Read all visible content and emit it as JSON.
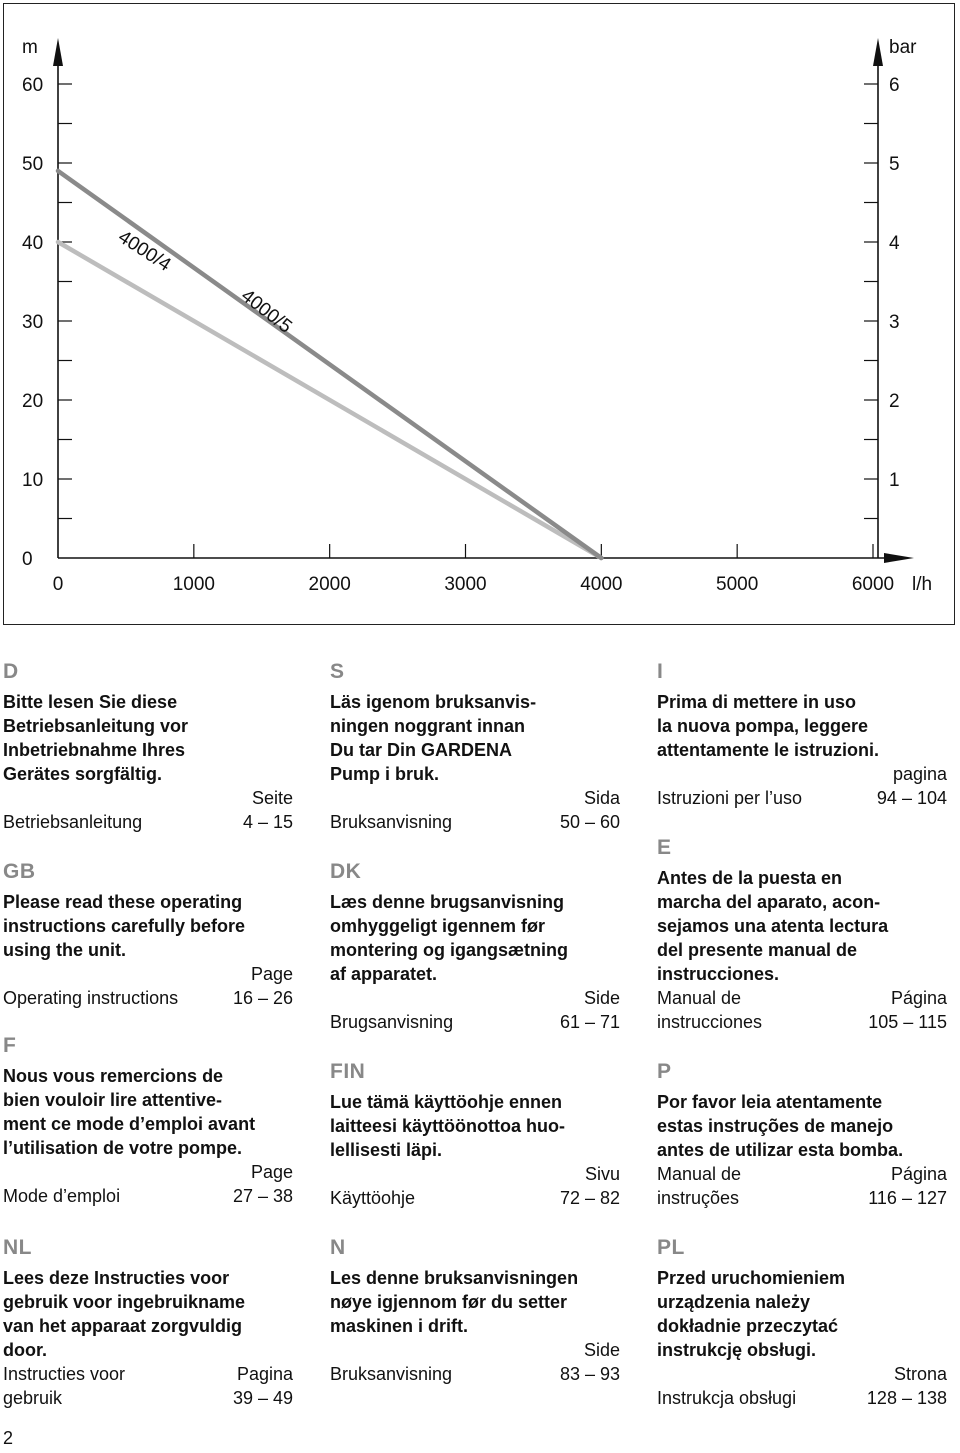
{
  "chart_data": {
    "type": "line",
    "y_left_unit": "m",
    "y_right_unit": "bar",
    "x_unit": "l/h",
    "y_left_ticks": [
      "60",
      "50",
      "40",
      "30",
      "20",
      "10",
      "0"
    ],
    "y_right_ticks": [
      "6",
      "5",
      "4",
      "3",
      "2",
      "1"
    ],
    "x_ticks": [
      "0",
      "1000",
      "2000",
      "3000",
      "4000",
      "5000",
      "6000"
    ],
    "xlim": [
      0,
      6500
    ],
    "ylim": [
      0,
      60
    ],
    "series": [
      {
        "name": "4000/4",
        "color": "#bdbdbd",
        "x": [
          0,
          4000
        ],
        "y": [
          40,
          0
        ]
      },
      {
        "name": "4000/5",
        "color": "#8a8a8a",
        "x": [
          0,
          4000
        ],
        "y": [
          49,
          0
        ]
      }
    ]
  },
  "sections": {
    "D": {
      "code": "D",
      "intro": "Bitte lesen Sie diese\nBetriebsanleitung vor\nInbetriebnahme Ihres\nGerätes sorgfältig.",
      "page_label": "Seite",
      "ref_title": "Betriebsanleitung",
      "ref_pages": "4 – 15"
    },
    "GB": {
      "code": "GB",
      "intro": "Please read these operating\ninstructions carefully before\nusing the unit.",
      "page_label": "Page",
      "ref_title": "Operating instructions",
      "ref_pages": "16 – 26"
    },
    "F": {
      "code": "F",
      "intro": "Nous vous remercions de\nbien vouloir lire attentive-\nment ce mode d’emploi avant\nl’utilisation de votre pompe.",
      "page_label": "Page",
      "ref_title": "Mode d’emploi",
      "ref_pages": "27 – 38"
    },
    "NL": {
      "code": "NL",
      "intro": "Lees deze Instructies voor\ngebruik voor ingebruikname\nvan het apparaat zorgvuldig\ndoor.",
      "page_label": "Pagina",
      "ref_title": "Instructies voor\ngebruik",
      "ref_pages": "39 – 49"
    },
    "S": {
      "code": "S",
      "intro": "Läs igenom bruksanvis-\nningen noggrant innan\nDu tar Din GARDENA\nPump i bruk.",
      "page_label": "Sida",
      "ref_title": "Bruksanvisning",
      "ref_pages": "50 – 60"
    },
    "DK": {
      "code": "DK",
      "intro": "Læs denne brugsanvisning\nomhyggeligt igennem før\nmontering og igangsætning\naf apparatet.",
      "page_label": "Side",
      "ref_title": "Brugsanvisning",
      "ref_pages": "61 – 71"
    },
    "FIN": {
      "code": "FIN",
      "intro": "Lue tämä käyttöohje ennen\nlaitteesi käyttöönottoa huo-\nlellisesti läpi.",
      "page_label": "Sivu",
      "ref_title": "Käyttöohje",
      "ref_pages": "72 – 82"
    },
    "N": {
      "code": "N",
      "intro": "Les denne bruksanvisningen\nnøye igjennom før du setter\nmaskinen i drift.",
      "page_label": "Side",
      "ref_title": "Bruksanvisning",
      "ref_pages": "83 – 93"
    },
    "I": {
      "code": "I",
      "intro": "Prima di mettere in uso\nla nuova pompa, leggere\nattentamente le istruzioni.",
      "page_label": "pagina",
      "ref_title": "Istruzioni per l’uso",
      "ref_pages": "94 – 104"
    },
    "E": {
      "code": "E",
      "intro": "Antes de la puesta en\nmarcha del aparato, acon-\nsejamos una atenta lectura\ndel presente manual de\ninstrucciones.",
      "page_label": "Página",
      "ref_title": "Manual de\ninstrucciones",
      "ref_pages": "105 – 115"
    },
    "P": {
      "code": "P",
      "intro": "Por favor leia atentamente\nestas instruções de manejo\nantes de utilizar esta bomba.",
      "page_label": "Página",
      "ref_title": "Manual de\ninstruções",
      "ref_pages": "116 – 127"
    },
    "PL": {
      "code": "PL",
      "intro": "Przed uruchomieniem\nurządzenia należy\ndokładnie przeczytać\ninstrukcję obsługi.",
      "page_label": "Strona",
      "ref_title": "Instrukcja obsługi",
      "ref_pages": "128 – 138"
    }
  },
  "page_number": "2"
}
